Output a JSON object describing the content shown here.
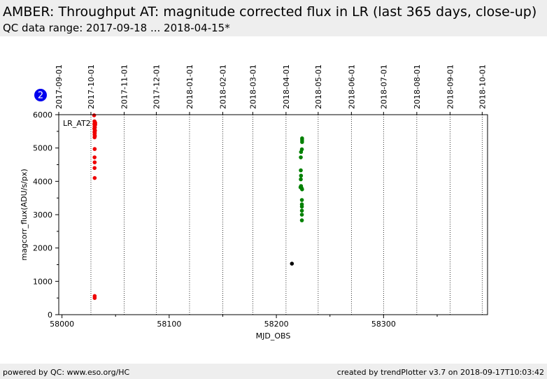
{
  "header": {
    "title": "AMBER: Throughput AT: magnitude corrected flux in LR (last 365 days, close-up)",
    "subtitle": "QC data range: 2017-09-18 ... 2018-04-15*"
  },
  "footer": {
    "left": "powered by QC: www.eso.org/HC",
    "right": "created by trendPlotter v3.7 on 2018-09-17T10:03:42"
  },
  "badge": {
    "label": "2",
    "color": "#0000ee"
  },
  "chart_data": {
    "type": "scatter",
    "xlabel": "MJD_OBS",
    "ylabel": "magcorr_flux(ADU/s/px)",
    "xlim": [
      57997,
      58397
    ],
    "ylim": [
      0,
      6000
    ],
    "x_ticks": [
      58000,
      58100,
      58200,
      58300
    ],
    "y_ticks": [
      0,
      1000,
      2000,
      3000,
      4000,
      5000,
      6000
    ],
    "grid": "vertical dotted lines at month boundaries",
    "legend_label": "LR_AT2",
    "date_ticks": [
      {
        "label": "2017-09-01",
        "mjd": 57997
      },
      {
        "label": "2017-10-01",
        "mjd": 58027
      },
      {
        "label": "2017-11-01",
        "mjd": 58058
      },
      {
        "label": "2017-12-01",
        "mjd": 58088
      },
      {
        "label": "2018-01-01",
        "mjd": 58119
      },
      {
        "label": "2018-02-01",
        "mjd": 58150
      },
      {
        "label": "2018-03-01",
        "mjd": 58178
      },
      {
        "label": "2018-04-01",
        "mjd": 58209
      },
      {
        "label": "2018-05-01",
        "mjd": 58239
      },
      {
        "label": "2018-06-01",
        "mjd": 58270
      },
      {
        "label": "2018-07-01",
        "mjd": 58300
      },
      {
        "label": "2018-08-01",
        "mjd": 58331
      },
      {
        "label": "2018-09-01",
        "mjd": 58362
      },
      {
        "label": "2018-10-01",
        "mjd": 58392
      }
    ],
    "series": [
      {
        "color": "#ee0000",
        "points": [
          [
            58030.0,
            5980
          ],
          [
            58030.3,
            5800
          ],
          [
            58030.6,
            5780
          ],
          [
            58030.8,
            5760
          ],
          [
            58031.0,
            5750
          ],
          [
            58030.2,
            5720
          ],
          [
            58030.6,
            5710
          ],
          [
            58031.0,
            5700
          ],
          [
            58030.4,
            5650
          ],
          [
            58030.7,
            5620
          ],
          [
            58030.2,
            5580
          ],
          [
            58030.5,
            5550
          ],
          [
            58030.8,
            5520
          ],
          [
            58030.3,
            5480
          ],
          [
            58030.6,
            5450
          ],
          [
            58030.4,
            5400
          ],
          [
            58030.7,
            5360
          ],
          [
            58030.4,
            5320
          ],
          [
            58030.5,
            4970
          ],
          [
            58030.4,
            4720
          ],
          [
            58030.5,
            4570
          ],
          [
            58030.4,
            4400
          ],
          [
            58030.5,
            4100
          ],
          [
            58030.5,
            560
          ],
          [
            58030.5,
            500
          ]
        ]
      },
      {
        "color": "#008000",
        "points": [
          [
            58224.0,
            5290
          ],
          [
            58224.0,
            5240
          ],
          [
            58224.0,
            5180
          ],
          [
            58223.8,
            4960
          ],
          [
            58223.0,
            4880
          ],
          [
            58222.8,
            4720
          ],
          [
            58222.8,
            4330
          ],
          [
            58223.0,
            4170
          ],
          [
            58222.8,
            4060
          ],
          [
            58223.0,
            3860
          ],
          [
            58222.5,
            3820
          ],
          [
            58223.5,
            3800
          ],
          [
            58224.0,
            3760
          ],
          [
            58223.8,
            3440
          ],
          [
            58223.8,
            3310
          ],
          [
            58223.8,
            3240
          ],
          [
            58223.8,
            3120
          ],
          [
            58223.8,
            3000
          ],
          [
            58223.8,
            2830
          ]
        ]
      },
      {
        "color": "#000000",
        "points": [
          [
            58214.5,
            1530
          ]
        ]
      }
    ]
  }
}
